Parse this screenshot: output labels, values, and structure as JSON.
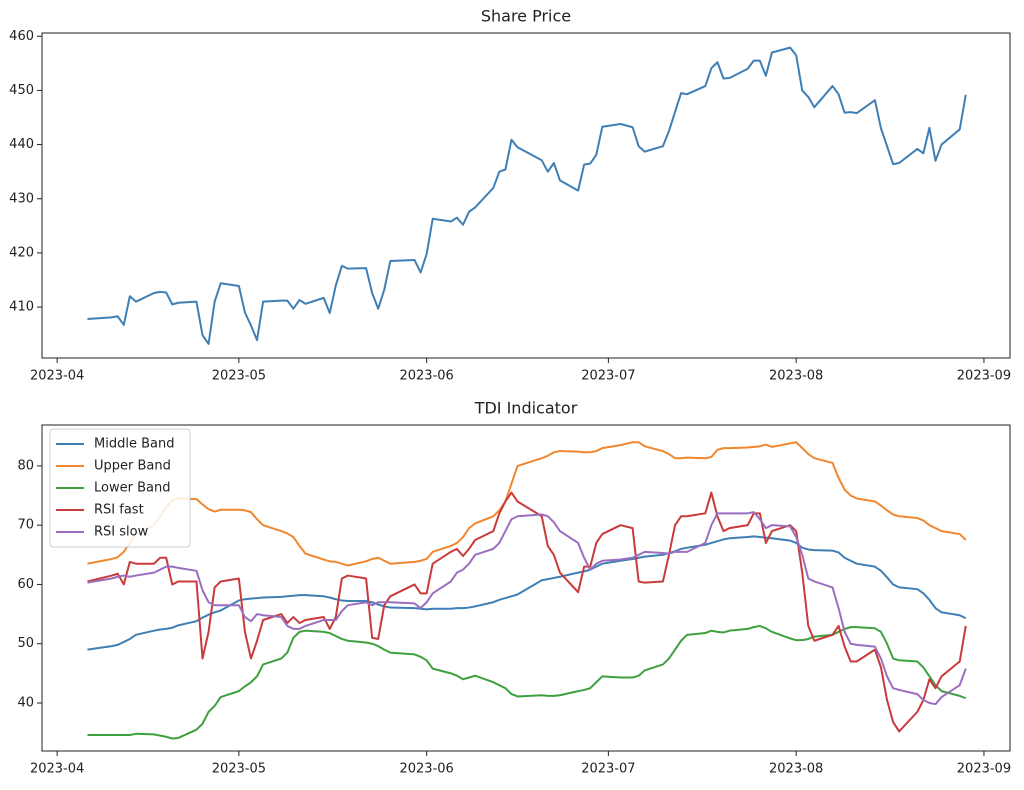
{
  "chart_data": [
    {
      "type": "line",
      "title": "Share Price",
      "x": [
        5,
        9,
        10,
        11,
        12,
        13,
        16,
        17,
        18,
        19,
        20,
        23,
        24,
        25,
        26,
        27,
        30,
        31,
        32,
        33,
        34,
        37,
        38,
        39,
        40,
        41,
        44,
        45,
        46,
        47,
        48,
        51,
        52,
        53,
        54,
        55,
        59,
        60,
        61,
        62,
        65,
        66,
        67,
        68,
        69,
        72,
        73,
        74,
        75,
        76,
        80,
        81,
        82,
        83,
        86,
        87,
        88,
        89,
        90,
        93,
        95,
        96,
        97,
        100,
        101,
        102,
        103,
        104,
        107,
        108,
        109,
        110,
        111,
        114,
        115,
        116,
        117,
        118,
        121,
        122,
        123,
        124,
        125,
        128,
        129,
        130,
        131,
        132,
        135,
        136,
        137,
        138,
        139,
        142,
        143,
        144,
        145,
        146,
        149,
        150
      ],
      "values": [
        407.8,
        408.1,
        408.3,
        406.7,
        412.0,
        411.0,
        412.6,
        412.8,
        412.7,
        410.5,
        410.8,
        411.0,
        404.8,
        403.2,
        411.0,
        414.4,
        413.9,
        409.0,
        406.6,
        403.9,
        411.0,
        411.2,
        411.2,
        409.7,
        411.3,
        410.6,
        411.7,
        408.9,
        414.0,
        417.6,
        417.1,
        417.2,
        412.6,
        409.7,
        413.2,
        418.5,
        418.7,
        416.4,
        419.8,
        426.3,
        425.8,
        426.5,
        425.2,
        427.6,
        428.4,
        432.0,
        435.0,
        435.4,
        440.9,
        439.5,
        437.1,
        435.0,
        436.6,
        433.4,
        431.5,
        436.3,
        436.5,
        438.1,
        443.3,
        443.8,
        443.2,
        439.7,
        438.7,
        439.7,
        442.5,
        446.0,
        449.5,
        449.3,
        450.8,
        454.1,
        455.2,
        452.2,
        452.3,
        454.0,
        455.5,
        455.5,
        452.7,
        457.0,
        457.9,
        456.5,
        450.0,
        448.8,
        446.9,
        450.8,
        449.3,
        445.9,
        446.0,
        445.8,
        448.2,
        443.0,
        439.7,
        436.4,
        436.6,
        439.2,
        438.4,
        443.1,
        437.0,
        440.0,
        442.8,
        449.2
      ],
      "color": "#3f7fb5",
      "xlim": [
        -2.5,
        157.3
      ],
      "ylim": [
        400.6,
        460.6
      ],
      "xticks": [
        {
          "value": 0,
          "label": "2023-04"
        },
        {
          "value": 30,
          "label": "2023-05"
        },
        {
          "value": 61,
          "label": "2023-06"
        },
        {
          "value": 91,
          "label": "2023-07"
        },
        {
          "value": 122,
          "label": "2023-08"
        },
        {
          "value": 153,
          "label": "2023-09"
        }
      ],
      "yticks": [
        410,
        420,
        430,
        440,
        450,
        460
      ]
    },
    {
      "type": "line",
      "title": "TDI Indicator",
      "x": [
        5,
        9,
        10,
        11,
        12,
        13,
        16,
        17,
        18,
        19,
        20,
        23,
        24,
        25,
        26,
        27,
        30,
        31,
        32,
        33,
        34,
        37,
        38,
        39,
        40,
        41,
        44,
        45,
        46,
        47,
        48,
        51,
        52,
        53,
        54,
        55,
        59,
        60,
        61,
        62,
        65,
        66,
        67,
        68,
        69,
        72,
        73,
        74,
        75,
        76,
        80,
        81,
        82,
        83,
        86,
        87,
        88,
        89,
        90,
        93,
        95,
        96,
        97,
        100,
        101,
        102,
        103,
        104,
        107,
        108,
        109,
        110,
        111,
        114,
        115,
        116,
        117,
        118,
        121,
        122,
        123,
        124,
        125,
        128,
        129,
        130,
        131,
        132,
        135,
        136,
        137,
        138,
        139,
        142,
        143,
        144,
        145,
        146,
        149,
        150
      ],
      "series": [
        {
          "name": "Middle Band",
          "color": "#3f7fb5",
          "values": [
            49.0,
            49.6,
            49.8,
            50.3,
            50.8,
            51.5,
            52.2,
            52.4,
            52.5,
            52.7,
            53.1,
            53.8,
            54.4,
            54.9,
            55.3,
            55.6,
            57.3,
            57.5,
            57.6,
            57.7,
            57.8,
            57.9,
            58.0,
            58.1,
            58.2,
            58.2,
            58.0,
            57.8,
            57.5,
            57.3,
            57.2,
            57.2,
            57.0,
            56.6,
            56.3,
            56.1,
            56.0,
            55.9,
            55.8,
            55.9,
            55.9,
            56.0,
            56.0,
            56.1,
            56.3,
            57.0,
            57.4,
            57.7,
            58.0,
            58.3,
            60.7,
            60.9,
            61.1,
            61.3,
            62.0,
            62.2,
            62.5,
            63.0,
            63.5,
            64.0,
            64.3,
            64.5,
            64.7,
            65.0,
            65.3,
            65.6,
            66.0,
            66.2,
            66.7,
            67.0,
            67.3,
            67.6,
            67.8,
            68.0,
            68.1,
            68.0,
            67.9,
            67.8,
            67.4,
            67.0,
            66.2,
            65.9,
            65.8,
            65.7,
            65.4,
            64.5,
            64.0,
            63.5,
            63.0,
            62.3,
            61.2,
            60.0,
            59.5,
            59.2,
            58.5,
            57.4,
            56.0,
            55.3,
            54.8,
            54.3
          ]
        },
        {
          "name": "Upper Band",
          "color": "#f0872e",
          "values": [
            63.5,
            64.3,
            64.6,
            65.5,
            67.0,
            68.5,
            70.0,
            71.5,
            73.0,
            74.2,
            74.5,
            74.4,
            73.5,
            72.7,
            72.3,
            72.6,
            72.6,
            72.5,
            72.2,
            71.0,
            70.0,
            69.0,
            68.6,
            68.0,
            66.5,
            65.2,
            64.2,
            63.9,
            63.8,
            63.5,
            63.2,
            63.9,
            64.3,
            64.5,
            64.0,
            63.5,
            63.8,
            64.0,
            64.3,
            65.5,
            66.5,
            67.0,
            68.0,
            69.5,
            70.3,
            71.5,
            72.5,
            74.0,
            77.0,
            80.0,
            81.3,
            81.7,
            82.3,
            82.5,
            82.4,
            82.3,
            82.3,
            82.5,
            83.0,
            83.5,
            84.0,
            84.0,
            83.3,
            82.5,
            82.0,
            81.3,
            81.3,
            81.4,
            81.3,
            81.5,
            82.7,
            83.0,
            83.0,
            83.1,
            83.2,
            83.3,
            83.6,
            83.2,
            83.8,
            84.0,
            83.0,
            82.0,
            81.3,
            80.5,
            78.0,
            76.0,
            75.0,
            74.5,
            74.0,
            73.3,
            72.5,
            71.8,
            71.5,
            71.2,
            70.8,
            70.0,
            69.5,
            69.0,
            68.5,
            67.5
          ]
        },
        {
          "name": "Lower Band",
          "color": "#3fa03f",
          "values": [
            34.6,
            34.6,
            34.6,
            34.6,
            34.6,
            34.8,
            34.7,
            34.5,
            34.3,
            34.0,
            34.1,
            35.5,
            36.5,
            38.5,
            39.5,
            41.0,
            42.0,
            42.8,
            43.5,
            44.5,
            46.5,
            47.5,
            48.5,
            51.0,
            52.0,
            52.2,
            52.0,
            51.8,
            51.3,
            50.8,
            50.5,
            50.2,
            50.0,
            49.6,
            49.0,
            48.5,
            48.2,
            47.8,
            47.2,
            45.8,
            45.0,
            44.6,
            44.0,
            44.3,
            44.6,
            43.5,
            43.0,
            42.5,
            41.5,
            41.1,
            41.3,
            41.2,
            41.2,
            41.3,
            42.0,
            42.2,
            42.5,
            43.5,
            44.5,
            44.3,
            44.3,
            44.6,
            45.5,
            46.5,
            47.5,
            49.0,
            50.5,
            51.5,
            51.8,
            52.2,
            52.0,
            51.9,
            52.2,
            52.5,
            52.8,
            53.0,
            52.6,
            52.0,
            50.9,
            50.6,
            50.6,
            50.8,
            51.2,
            51.5,
            52.0,
            52.5,
            52.8,
            52.8,
            52.6,
            52.0,
            50.0,
            47.5,
            47.2,
            47.0,
            46.0,
            44.5,
            43.0,
            42.0,
            41.2,
            40.8
          ]
        },
        {
          "name": "RSI fast",
          "color": "#c93a3a",
          "values": [
            60.5,
            61.5,
            61.8,
            60,
            63.8,
            63.5,
            63.5,
            64.5,
            64.5,
            60,
            60.5,
            60.5,
            47.5,
            52,
            59.5,
            60.5,
            61,
            52,
            47.5,
            50.5,
            54,
            55,
            53.5,
            54.5,
            53.5,
            54,
            54.5,
            52.5,
            54.5,
            61,
            61.5,
            61,
            51,
            50.8,
            56.5,
            58,
            60,
            58.5,
            58.5,
            63.5,
            65.5,
            66,
            64.8,
            66,
            67.5,
            69,
            72,
            74,
            75.5,
            74,
            71.5,
            66.5,
            65,
            62,
            58.7,
            63,
            63,
            67,
            68.5,
            70,
            69.5,
            60.5,
            60.3,
            60.5,
            65,
            70,
            71.5,
            71.5,
            72,
            75.5,
            71.5,
            69,
            69.5,
            70,
            72,
            72,
            67,
            69,
            70,
            69,
            62,
            53,
            50.5,
            51.5,
            53,
            49.5,
            47,
            47,
            49,
            46,
            40.5,
            36.8,
            35.2,
            38.5,
            40.5,
            44,
            42.5,
            44.5,
            47,
            53
          ]
        },
        {
          "name": "RSI slow",
          "color": "#9a6fc0",
          "values": [
            60.3,
            61,
            61.3,
            61.5,
            61.3,
            61.5,
            62,
            62.5,
            63,
            63,
            62.8,
            62.3,
            59,
            57,
            56.5,
            56.5,
            56.5,
            54.5,
            53.8,
            55,
            54.8,
            54.5,
            53,
            52.5,
            52.5,
            53,
            54,
            54,
            54,
            55.5,
            56.5,
            57,
            56.5,
            57,
            57,
            57,
            56.8,
            56,
            57,
            58.5,
            60.5,
            62,
            62.5,
            63.5,
            65,
            66,
            67,
            69,
            71,
            71.5,
            71.8,
            71.5,
            70.5,
            69,
            67,
            64.5,
            62.5,
            63.5,
            64,
            64.2,
            64.5,
            65,
            65.5,
            65.3,
            65.2,
            65.5,
            65.5,
            65.5,
            67,
            70,
            72,
            72,
            72,
            72,
            72.2,
            71,
            69.5,
            70,
            69.8,
            68,
            65,
            61,
            60.5,
            59.5,
            56,
            52,
            50,
            49.8,
            49.5,
            47.5,
            44.5,
            42.5,
            42.2,
            41.5,
            40.5,
            40,
            39.8,
            41,
            43,
            45.8
          ]
        }
      ],
      "xlim": [
        -2.5,
        157.3
      ],
      "ylim": [
        31.9,
        86.9
      ],
      "xticks": [
        {
          "value": 0,
          "label": "2023-04"
        },
        {
          "value": 30,
          "label": "2023-05"
        },
        {
          "value": 61,
          "label": "2023-06"
        },
        {
          "value": 91,
          "label": "2023-07"
        },
        {
          "value": 122,
          "label": "2023-08"
        },
        {
          "value": 153,
          "label": "2023-09"
        }
      ],
      "yticks": [
        40,
        50,
        60,
        70,
        80
      ],
      "legend": "upper left"
    }
  ]
}
